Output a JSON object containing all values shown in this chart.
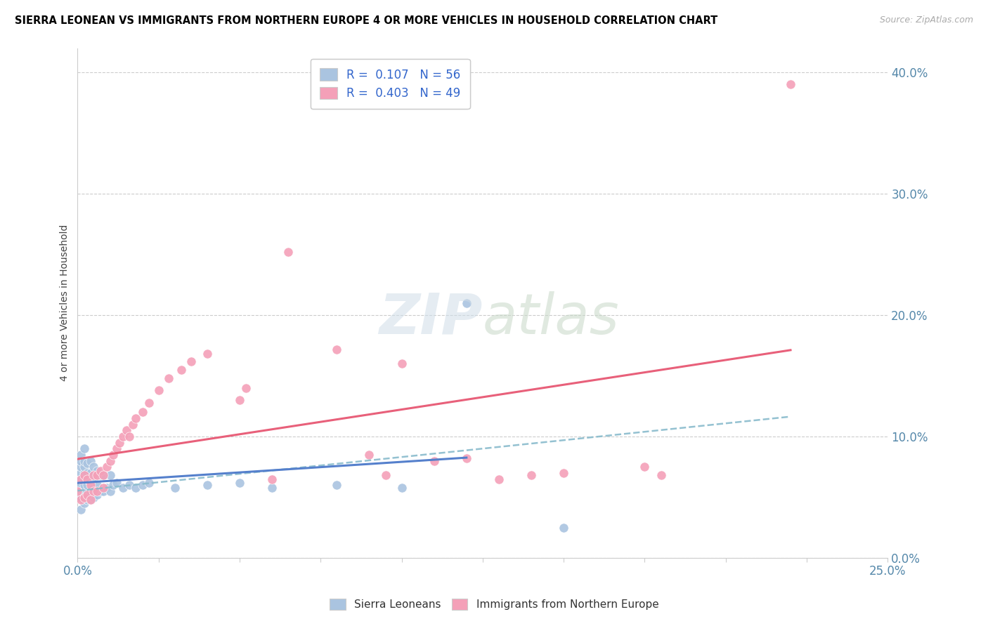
{
  "title": "SIERRA LEONEAN VS IMMIGRANTS FROM NORTHERN EUROPE 4 OR MORE VEHICLES IN HOUSEHOLD CORRELATION CHART",
  "source": "Source: ZipAtlas.com",
  "ylabel": "4 or more Vehicles in Household",
  "blue_label": "Sierra Leoneans",
  "pink_label": "Immigrants from Northern Europe",
  "blue_R": 0.107,
  "blue_N": 56,
  "pink_R": 0.403,
  "pink_N": 49,
  "xlim": [
    0.0,
    0.25
  ],
  "ylim": [
    0.0,
    0.42
  ],
  "blue_color": "#aac4e0",
  "pink_color": "#f4a0b8",
  "blue_line_color": "#5580cc",
  "pink_line_color": "#e8607a",
  "dashed_line_color": "#88bbcc",
  "blue_scatter_x": [
    0.0,
    0.0,
    0.001,
    0.001,
    0.001,
    0.001,
    0.001,
    0.001,
    0.001,
    0.002,
    0.002,
    0.002,
    0.002,
    0.002,
    0.002,
    0.002,
    0.002,
    0.003,
    0.003,
    0.003,
    0.003,
    0.003,
    0.004,
    0.004,
    0.004,
    0.004,
    0.004,
    0.005,
    0.005,
    0.005,
    0.005,
    0.006,
    0.006,
    0.006,
    0.007,
    0.007,
    0.008,
    0.008,
    0.009,
    0.01,
    0.01,
    0.011,
    0.012,
    0.014,
    0.016,
    0.018,
    0.02,
    0.022,
    0.03,
    0.04,
    0.05,
    0.06,
    0.08,
    0.1,
    0.12,
    0.15
  ],
  "blue_scatter_y": [
    0.055,
    0.065,
    0.05,
    0.06,
    0.07,
    0.075,
    0.08,
    0.085,
    0.04,
    0.045,
    0.055,
    0.06,
    0.065,
    0.07,
    0.075,
    0.08,
    0.09,
    0.048,
    0.055,
    0.06,
    0.07,
    0.078,
    0.048,
    0.055,
    0.062,
    0.07,
    0.08,
    0.05,
    0.058,
    0.065,
    0.075,
    0.052,
    0.06,
    0.072,
    0.055,
    0.068,
    0.055,
    0.068,
    0.058,
    0.055,
    0.068,
    0.06,
    0.062,
    0.058,
    0.06,
    0.058,
    0.06,
    0.062,
    0.058,
    0.06,
    0.062,
    0.058,
    0.06,
    0.058,
    0.21,
    0.025
  ],
  "pink_scatter_x": [
    0.0,
    0.001,
    0.001,
    0.002,
    0.002,
    0.003,
    0.003,
    0.004,
    0.004,
    0.005,
    0.005,
    0.006,
    0.006,
    0.007,
    0.008,
    0.008,
    0.009,
    0.01,
    0.011,
    0.012,
    0.013,
    0.014,
    0.015,
    0.016,
    0.017,
    0.018,
    0.02,
    0.022,
    0.025,
    0.028,
    0.032,
    0.035,
    0.04,
    0.05,
    0.052,
    0.06,
    0.065,
    0.08,
    0.09,
    0.095,
    0.1,
    0.11,
    0.12,
    0.13,
    0.14,
    0.15,
    0.175,
    0.18,
    0.22
  ],
  "pink_scatter_y": [
    0.055,
    0.048,
    0.065,
    0.05,
    0.068,
    0.052,
    0.065,
    0.048,
    0.06,
    0.055,
    0.068,
    0.055,
    0.068,
    0.072,
    0.058,
    0.068,
    0.075,
    0.08,
    0.085,
    0.09,
    0.095,
    0.1,
    0.105,
    0.1,
    0.11,
    0.115,
    0.12,
    0.128,
    0.138,
    0.148,
    0.155,
    0.162,
    0.168,
    0.13,
    0.14,
    0.065,
    0.252,
    0.172,
    0.085,
    0.068,
    0.16,
    0.08,
    0.082,
    0.065,
    0.068,
    0.07,
    0.075,
    0.068,
    0.39
  ]
}
